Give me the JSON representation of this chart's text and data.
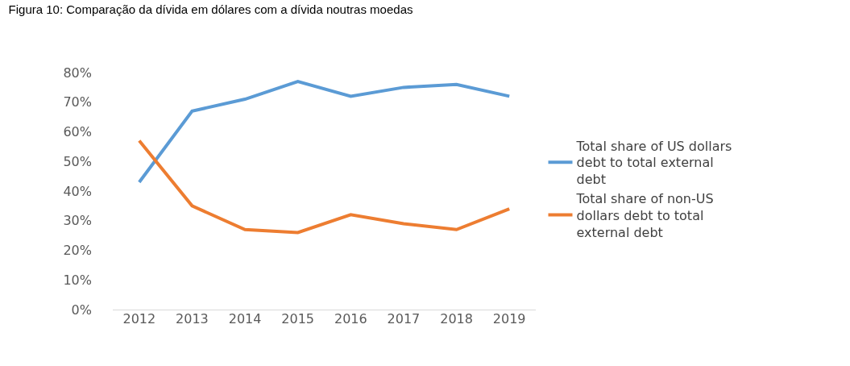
{
  "chart_data": {
    "type": "line",
    "title": "Figura 10: Comparação da dívida em dólares com a dívida noutras moedas",
    "categories": [
      "2012",
      "2013",
      "2014",
      "2015",
      "2016",
      "2017",
      "2018",
      "2019"
    ],
    "series": [
      {
        "name": "Total share of US dollars debt to total external debt",
        "color": "#5b9bd5",
        "values": [
          43,
          67,
          71,
          77,
          72,
          75,
          76,
          72
        ]
      },
      {
        "name": "Total share of non-US dollars debt to total external debt",
        "color": "#ed7d31",
        "values": [
          57,
          35,
          27,
          26,
          32,
          29,
          27,
          34
        ]
      }
    ],
    "ylim": [
      0,
      80
    ],
    "yticks": [
      {
        "value": 0,
        "label": "0%"
      },
      {
        "value": 10,
        "label": "10%"
      },
      {
        "value": 20,
        "label": "20%"
      },
      {
        "value": 30,
        "label": "30%"
      },
      {
        "value": 40,
        "label": "40%"
      },
      {
        "value": 50,
        "label": "50%"
      },
      {
        "value": 60,
        "label": "60%"
      },
      {
        "value": 70,
        "label": "70%"
      },
      {
        "value": 80,
        "label": "80%"
      }
    ],
    "grid": false,
    "legend": "right",
    "marker": "none",
    "line_style": "solid"
  }
}
